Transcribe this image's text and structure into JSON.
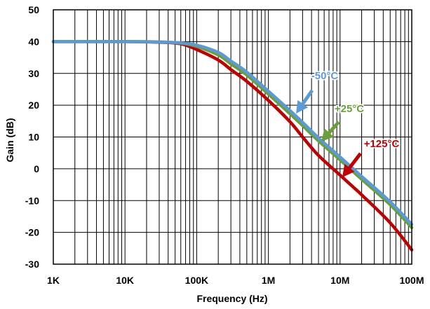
{
  "chart_data": {
    "type": "line",
    "title": "",
    "xlabel": "Frequency (Hz)",
    "ylabel": "Gain (dB)",
    "x_scale": "log",
    "xlim": [
      1000,
      100000000
    ],
    "ylim": [
      -30,
      50
    ],
    "grid": true,
    "x_ticks": [
      {
        "value": 1000,
        "label": "1K"
      },
      {
        "value": 10000,
        "label": "10K"
      },
      {
        "value": 100000,
        "label": "100K"
      },
      {
        "value": 1000000,
        "label": "1M"
      },
      {
        "value": 10000000,
        "label": "10M"
      },
      {
        "value": 100000000,
        "label": "100M"
      }
    ],
    "y_ticks": [
      -30,
      -20,
      -10,
      0,
      10,
      20,
      30,
      40,
      50
    ],
    "series": [
      {
        "name": "+125°C",
        "color": "#c00000",
        "x": [
          1000,
          10000,
          30000,
          60000,
          100000,
          200000,
          300000,
          500000,
          1000000,
          2000000,
          3000000,
          5000000,
          10000000,
          20000000,
          50000000,
          100000000
        ],
        "y": [
          40,
          40,
          39.8,
          39.3,
          37.5,
          34.2,
          31.2,
          27.5,
          21.5,
          14.8,
          10,
          4.2,
          -2,
          -8.2,
          -17,
          -25.5
        ]
      },
      {
        "name": "+25°C",
        "color": "#6a9f3a",
        "x": [
          1000,
          10000,
          30000,
          60000,
          100000,
          200000,
          300000,
          500000,
          1000000,
          2000000,
          3000000,
          5000000,
          10000000,
          20000000,
          50000000,
          100000000
        ],
        "y": [
          40,
          40,
          39.9,
          39.5,
          38.5,
          35.8,
          33,
          29.5,
          23.5,
          17.3,
          13.6,
          8.8,
          2.8,
          -3.3,
          -11.3,
          -18.5
        ]
      },
      {
        "name": "-50°C",
        "color": "#5b9bd5",
        "x": [
          1000,
          10000,
          30000,
          60000,
          100000,
          200000,
          300000,
          500000,
          1000000,
          2000000,
          3000000,
          5000000,
          10000000,
          20000000,
          50000000,
          100000000
        ],
        "y": [
          40,
          40,
          39.9,
          39.6,
          38.9,
          36.6,
          33.9,
          30.4,
          24.4,
          18.3,
          14.6,
          9.7,
          3.7,
          -2.4,
          -10.4,
          -17.5
        ]
      }
    ],
    "annotations": [
      {
        "text": "-50°C",
        "series": "-50°C"
      },
      {
        "text": "+25°C",
        "series": "+25°C"
      },
      {
        "text": "+125°C",
        "series": "+125°C"
      }
    ]
  }
}
